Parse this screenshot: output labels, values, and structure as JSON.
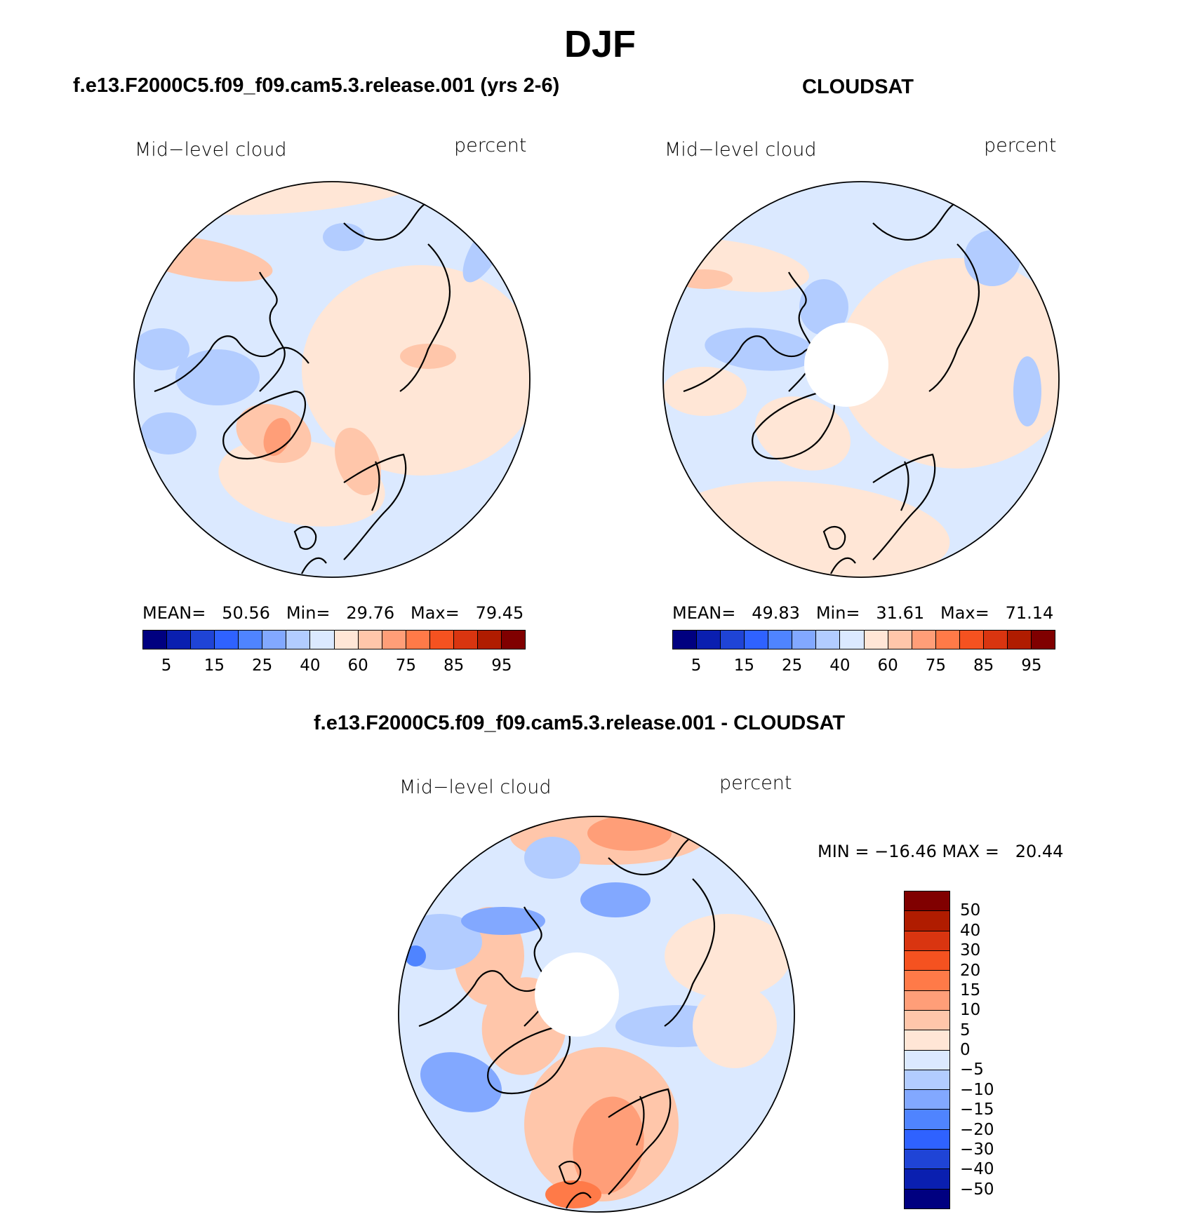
{
  "figure": {
    "title": "DJF",
    "bottom_title": "f.e13.F2000C5.f09_f09.cam5.3.release.001 - CLOUDSAT"
  },
  "colors": {
    "abs_palette": [
      "#000080",
      "#0a1fb0",
      "#1f44d6",
      "#2f62ff",
      "#4f84ff",
      "#82a8ff",
      "#b2ccff",
      "#dbe9ff",
      "#ffe6d6",
      "#ffc6aa",
      "#ff9e78",
      "#ff7a48",
      "#f55220",
      "#d93510",
      "#b01c00",
      "#800000"
    ],
    "diff_palette": [
      "#000080",
      "#0a1fb0",
      "#1f44d6",
      "#2f62ff",
      "#4f84ff",
      "#82a8ff",
      "#b2ccff",
      "#dbe9ff",
      "#ffe6d6",
      "#ffc6aa",
      "#ff9e78",
      "#ff7a48",
      "#f55220",
      "#d93510",
      "#b01c00",
      "#800000"
    ]
  },
  "panels": [
    {
      "title": "f.e13.F2000C5.f09_f09.cam5.3.release.001 (yrs 2-6)",
      "left_label": "Mid−level cloud",
      "right_label": "percent",
      "stats": "MEAN=   50.56   Min=   29.76   Max=   79.45",
      "colorbar_ticks": [
        "5",
        "15",
        "25",
        "40",
        "60",
        "75",
        "85",
        "95"
      ]
    },
    {
      "title": "CLOUDSAT",
      "left_label": "Mid−level cloud",
      "right_label": "percent",
      "stats": "MEAN=   49.83   Min=   31.61   Max=   71.14",
      "colorbar_ticks": [
        "5",
        "15",
        "25",
        "40",
        "60",
        "75",
        "85",
        "95"
      ]
    }
  ],
  "diff_panel": {
    "left_label": "Mid−level cloud",
    "right_label": "percent",
    "stats": "MIN = −16.46 MAX =   20.44",
    "colorbar_ticks": [
      "50",
      "40",
      "30",
      "20",
      "15",
      "10",
      "5",
      "0",
      "−5",
      "−10",
      "−15",
      "−20",
      "−30",
      "−40",
      "−50"
    ]
  }
}
